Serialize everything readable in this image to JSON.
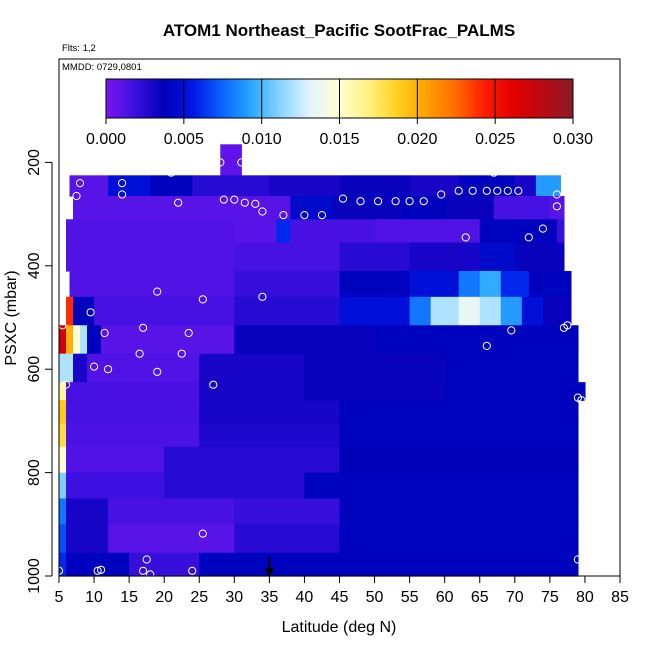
{
  "chart_data": {
    "type": "heatmap",
    "title": "ATOM1 Northeast_Pacific SootFrac_PALMS",
    "annotations": [
      "Flts: 1,2",
      "MMDD: 0729,0801"
    ],
    "xlabel": "Latitude (deg N)",
    "ylabel": "PSXC (mbar)",
    "xlim": [
      5,
      85
    ],
    "ylim": [
      1000,
      0
    ],
    "x_ticks": [
      5,
      10,
      15,
      20,
      25,
      30,
      35,
      40,
      45,
      50,
      55,
      60,
      65,
      70,
      75,
      80,
      85
    ],
    "y_ticks": [
      200,
      400,
      600,
      800,
      1000
    ],
    "colorbar": {
      "range": [
        0,
        0.03
      ],
      "ticks": [
        "0.000",
        "0.005",
        "0.010",
        "0.015",
        "0.020",
        "0.025",
        "0.030"
      ],
      "colors": [
        "#7b16f0",
        "#3a10e0",
        "#0000b8",
        "#0018e8",
        "#0a64ff",
        "#2aa8ff",
        "#8ad6ff",
        "#e4f4ff",
        "#fffed0",
        "#fff080",
        "#ffd020",
        "#ffa000",
        "#ff6a00",
        "#ff1a00",
        "#e00000",
        "#b80a14",
        "#8c1a2a"
      ]
    },
    "marker": {
      "latitude": 35,
      "pressure": 1000
    },
    "bands": [
      {
        "p": [
          165,
          225
        ],
        "segments": [
          [
            28,
            31,
            0.0008
          ]
        ]
      },
      {
        "p": [
          225,
          265
        ],
        "segments": [
          [
            6.5,
            12,
            0.001
          ],
          [
            12,
            18,
            0.005
          ],
          [
            18,
            24,
            0.004
          ],
          [
            24,
            35,
            0.0025
          ],
          [
            35,
            45,
            0.003
          ],
          [
            45,
            55,
            0.0035
          ],
          [
            55,
            62,
            0.003
          ],
          [
            62,
            70,
            0.004
          ],
          [
            70,
            73,
            0.003
          ],
          [
            73,
            76.5,
            0.009
          ]
        ]
      },
      {
        "p": [
          265,
          310
        ],
        "segments": [
          [
            7,
            30,
            0.001
          ],
          [
            30,
            38,
            0.001
          ],
          [
            38,
            44,
            0.0045
          ],
          [
            44,
            54,
            0.0035
          ],
          [
            54,
            60,
            0.004
          ],
          [
            60,
            67,
            0.0035
          ],
          [
            67,
            75,
            0.0015
          ],
          [
            75,
            77,
            0.001
          ]
        ]
      },
      {
        "p": [
          310,
          355
        ],
        "segments": [
          [
            6,
            30,
            0.0012
          ],
          [
            30,
            36,
            0.001
          ],
          [
            36,
            38,
            0.006
          ],
          [
            38,
            50,
            0.0015
          ],
          [
            50,
            65,
            0.0012
          ],
          [
            65,
            76,
            0.004
          ],
          [
            76,
            77,
            0.002
          ]
        ]
      },
      {
        "p": [
          355,
          410
        ],
        "segments": [
          [
            6,
            30,
            0.0012
          ],
          [
            30,
            45,
            0.0015
          ],
          [
            45,
            55,
            0.0025
          ],
          [
            55,
            65,
            0.003
          ],
          [
            65,
            70,
            0.0045
          ],
          [
            70,
            77,
            0.0035
          ]
        ]
      },
      {
        "p": [
          410,
          460
        ],
        "segments": [
          [
            6.5,
            30,
            0.0012
          ],
          [
            30,
            45,
            0.002
          ],
          [
            45,
            55,
            0.004
          ],
          [
            55,
            62,
            0.005
          ],
          [
            62,
            65,
            0.008
          ],
          [
            65,
            68,
            0.0095
          ],
          [
            68,
            72,
            0.006
          ],
          [
            72,
            78,
            0.004
          ]
        ]
      },
      {
        "p": [
          460,
          515
        ],
        "segments": [
          [
            6,
            7,
            0.024
          ],
          [
            7,
            10,
            0.004
          ],
          [
            10,
            30,
            0.0015
          ],
          [
            30,
            45,
            0.0025
          ],
          [
            45,
            55,
            0.005
          ],
          [
            55,
            58,
            0.008
          ],
          [
            58,
            62,
            0.012
          ],
          [
            62,
            65,
            0.0135
          ],
          [
            65,
            68,
            0.012
          ],
          [
            68,
            71,
            0.009
          ],
          [
            71,
            74,
            0.005
          ],
          [
            74,
            78,
            0.0035
          ]
        ]
      },
      {
        "p": [
          515,
          570
        ],
        "segments": [
          [
            5,
            6,
            0.027
          ],
          [
            6,
            7,
            0.02
          ],
          [
            7,
            8,
            0.015
          ],
          [
            8,
            9,
            0.012
          ],
          [
            9,
            11,
            0.004
          ],
          [
            11,
            30,
            0.001
          ],
          [
            30,
            50,
            0.0035
          ],
          [
            50,
            79,
            0.004
          ]
        ]
      },
      {
        "p": [
          570,
          625
        ],
        "segments": [
          [
            5,
            7,
            0.012
          ],
          [
            7,
            9,
            0.003
          ],
          [
            9,
            25,
            0.0012
          ],
          [
            25,
            40,
            0.003
          ],
          [
            40,
            60,
            0.0035
          ],
          [
            60,
            79,
            0.004
          ]
        ]
      },
      {
        "p": [
          625,
          660
        ],
        "segments": [
          [
            5,
            6,
            0.016
          ],
          [
            6,
            25,
            0.0015
          ],
          [
            25,
            40,
            0.003
          ],
          [
            40,
            60,
            0.0035
          ],
          [
            60,
            79,
            0.004
          ],
          [
            79,
            80,
            0.004
          ]
        ]
      },
      {
        "p": [
          660,
          705
        ],
        "segments": [
          [
            5,
            6,
            0.019
          ],
          [
            6,
            25,
            0.0015
          ],
          [
            25,
            45,
            0.003
          ],
          [
            45,
            79,
            0.004
          ]
        ]
      },
      {
        "p": [
          705,
          750
        ],
        "segments": [
          [
            5,
            6,
            0.018
          ],
          [
            6,
            25,
            0.0014
          ],
          [
            25,
            45,
            0.0028
          ],
          [
            45,
            79,
            0.004
          ]
        ]
      },
      {
        "p": [
          750,
          800
        ],
        "segments": [
          [
            5,
            6,
            0.015
          ],
          [
            6,
            20,
            0.0012
          ],
          [
            20,
            45,
            0.0025
          ],
          [
            45,
            79,
            0.0038
          ]
        ]
      },
      {
        "p": [
          800,
          850
        ],
        "segments": [
          [
            5,
            6,
            0.011
          ],
          [
            6,
            20,
            0.0018
          ],
          [
            20,
            40,
            0.0025
          ],
          [
            40,
            79,
            0.004
          ]
        ]
      },
      {
        "p": [
          850,
          900
        ],
        "segments": [
          [
            5,
            6,
            0.008
          ],
          [
            6,
            12,
            0.003
          ],
          [
            12,
            30,
            0.0015
          ],
          [
            30,
            45,
            0.002
          ],
          [
            45,
            79,
            0.004
          ]
        ]
      },
      {
        "p": [
          900,
          955
        ],
        "segments": [
          [
            5,
            6,
            0.007
          ],
          [
            6,
            12,
            0.003
          ],
          [
            12,
            30,
            0.001
          ],
          [
            30,
            45,
            0.0025
          ],
          [
            45,
            79,
            0.004
          ]
        ]
      },
      {
        "p": [
          955,
          1000
        ],
        "segments": [
          [
            5,
            6,
            0.006
          ],
          [
            6,
            15,
            0.004
          ],
          [
            15,
            25,
            0.002
          ],
          [
            25,
            79,
            0.004
          ]
        ]
      }
    ],
    "samples": [
      [
        8,
        240
      ],
      [
        14,
        240
      ],
      [
        14,
        262
      ],
      [
        7.5,
        265
      ],
      [
        21,
        220
      ],
      [
        22,
        278
      ],
      [
        28,
        200
      ],
      [
        31,
        200
      ],
      [
        28.5,
        272
      ],
      [
        30,
        272
      ],
      [
        31.5,
        278
      ],
      [
        33,
        280
      ],
      [
        34,
        295
      ],
      [
        37,
        302
      ],
      [
        40,
        302
      ],
      [
        42.5,
        302
      ],
      [
        45.5,
        270
      ],
      [
        48,
        275
      ],
      [
        50.5,
        275
      ],
      [
        53,
        275
      ],
      [
        55,
        275
      ],
      [
        57,
        275
      ],
      [
        59.5,
        262
      ],
      [
        62,
        255
      ],
      [
        64,
        255
      ],
      [
        66,
        255
      ],
      [
        67.5,
        255
      ],
      [
        69,
        255
      ],
      [
        70.5,
        255
      ],
      [
        67,
        220
      ],
      [
        76,
        262
      ],
      [
        76,
        285
      ],
      [
        74,
        328
      ],
      [
        72,
        345
      ],
      [
        63,
        345
      ],
      [
        19,
        450
      ],
      [
        25.5,
        465
      ],
      [
        34,
        460
      ],
      [
        9.5,
        490
      ],
      [
        5.5,
        515
      ],
      [
        11.5,
        530
      ],
      [
        17,
        520
      ],
      [
        23.5,
        530
      ],
      [
        69.5,
        525
      ],
      [
        77.5,
        515
      ],
      [
        77,
        520
      ],
      [
        66,
        555
      ],
      [
        16.5,
        570
      ],
      [
        22.5,
        570
      ],
      [
        10,
        595
      ],
      [
        12,
        600
      ],
      [
        19,
        605
      ],
      [
        27,
        630
      ],
      [
        6,
        630
      ],
      [
        79,
        655
      ],
      [
        79.5,
        660
      ],
      [
        25.5,
        918
      ],
      [
        79,
        968
      ],
      [
        17.5,
        968
      ],
      [
        11,
        988
      ],
      [
        10.5,
        990
      ],
      [
        17,
        990
      ],
      [
        18,
        997
      ],
      [
        24,
        990
      ],
      [
        5,
        990
      ]
    ]
  }
}
